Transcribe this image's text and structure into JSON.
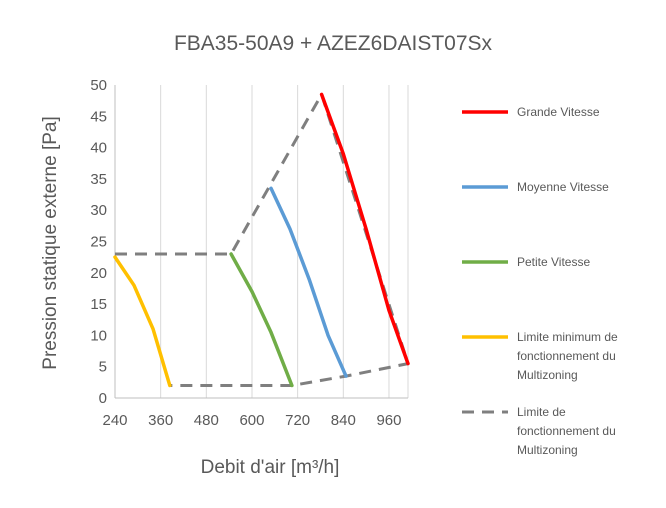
{
  "chart_data": {
    "type": "line",
    "title": "FBA35-50A9 + AZEZ6DAIST07Sx",
    "xlabel": "Debit d'air [m³/h]",
    "ylabel": "Pression statique externe [Pa]",
    "xlim": [
      240,
      1010
    ],
    "ylim": [
      0,
      50
    ],
    "xticks": [
      240,
      360,
      480,
      600,
      720,
      840,
      960
    ],
    "yticks": [
      0,
      5,
      10,
      15,
      20,
      25,
      30,
      35,
      40,
      45,
      50
    ],
    "grid": {
      "vertical": true,
      "horizontal": false
    },
    "legend_position": "right",
    "series": [
      {
        "name": "Grande Vitesse",
        "color": "#ff0000",
        "dash": false,
        "points": [
          [
            783,
            48.5
          ],
          [
            840,
            39
          ],
          [
            900,
            27
          ],
          [
            960,
            14
          ],
          [
            1010,
            5.5
          ]
        ]
      },
      {
        "name": "Moyenne Vitesse",
        "color": "#5b9bd5",
        "dash": false,
        "points": [
          [
            650,
            33.5
          ],
          [
            700,
            27
          ],
          [
            750,
            19
          ],
          [
            800,
            10
          ],
          [
            847,
            3.5
          ]
        ]
      },
      {
        "name": "Petite Vitesse",
        "color": "#70ad47",
        "dash": false,
        "points": [
          [
            545,
            23
          ],
          [
            600,
            17
          ],
          [
            650,
            10.5
          ],
          [
            705,
            2
          ]
        ]
      },
      {
        "name": "Limite minimum de fonctionnement du Multizoning",
        "color": "#ffc000",
        "dash": false,
        "points": [
          [
            240,
            22.5
          ],
          [
            290,
            18
          ],
          [
            340,
            11
          ],
          [
            384,
            2
          ]
        ]
      },
      {
        "name": "Limite de fonctionnement du Multizoning",
        "color": "#7f7f7f",
        "dash": true,
        "points": [
          [
            240,
            23
          ],
          [
            545,
            23
          ],
          [
            783,
            48.5
          ],
          [
            1010,
            5.5
          ],
          [
            847,
            3.5
          ],
          [
            705,
            2
          ],
          [
            384,
            2
          ]
        ]
      }
    ]
  }
}
